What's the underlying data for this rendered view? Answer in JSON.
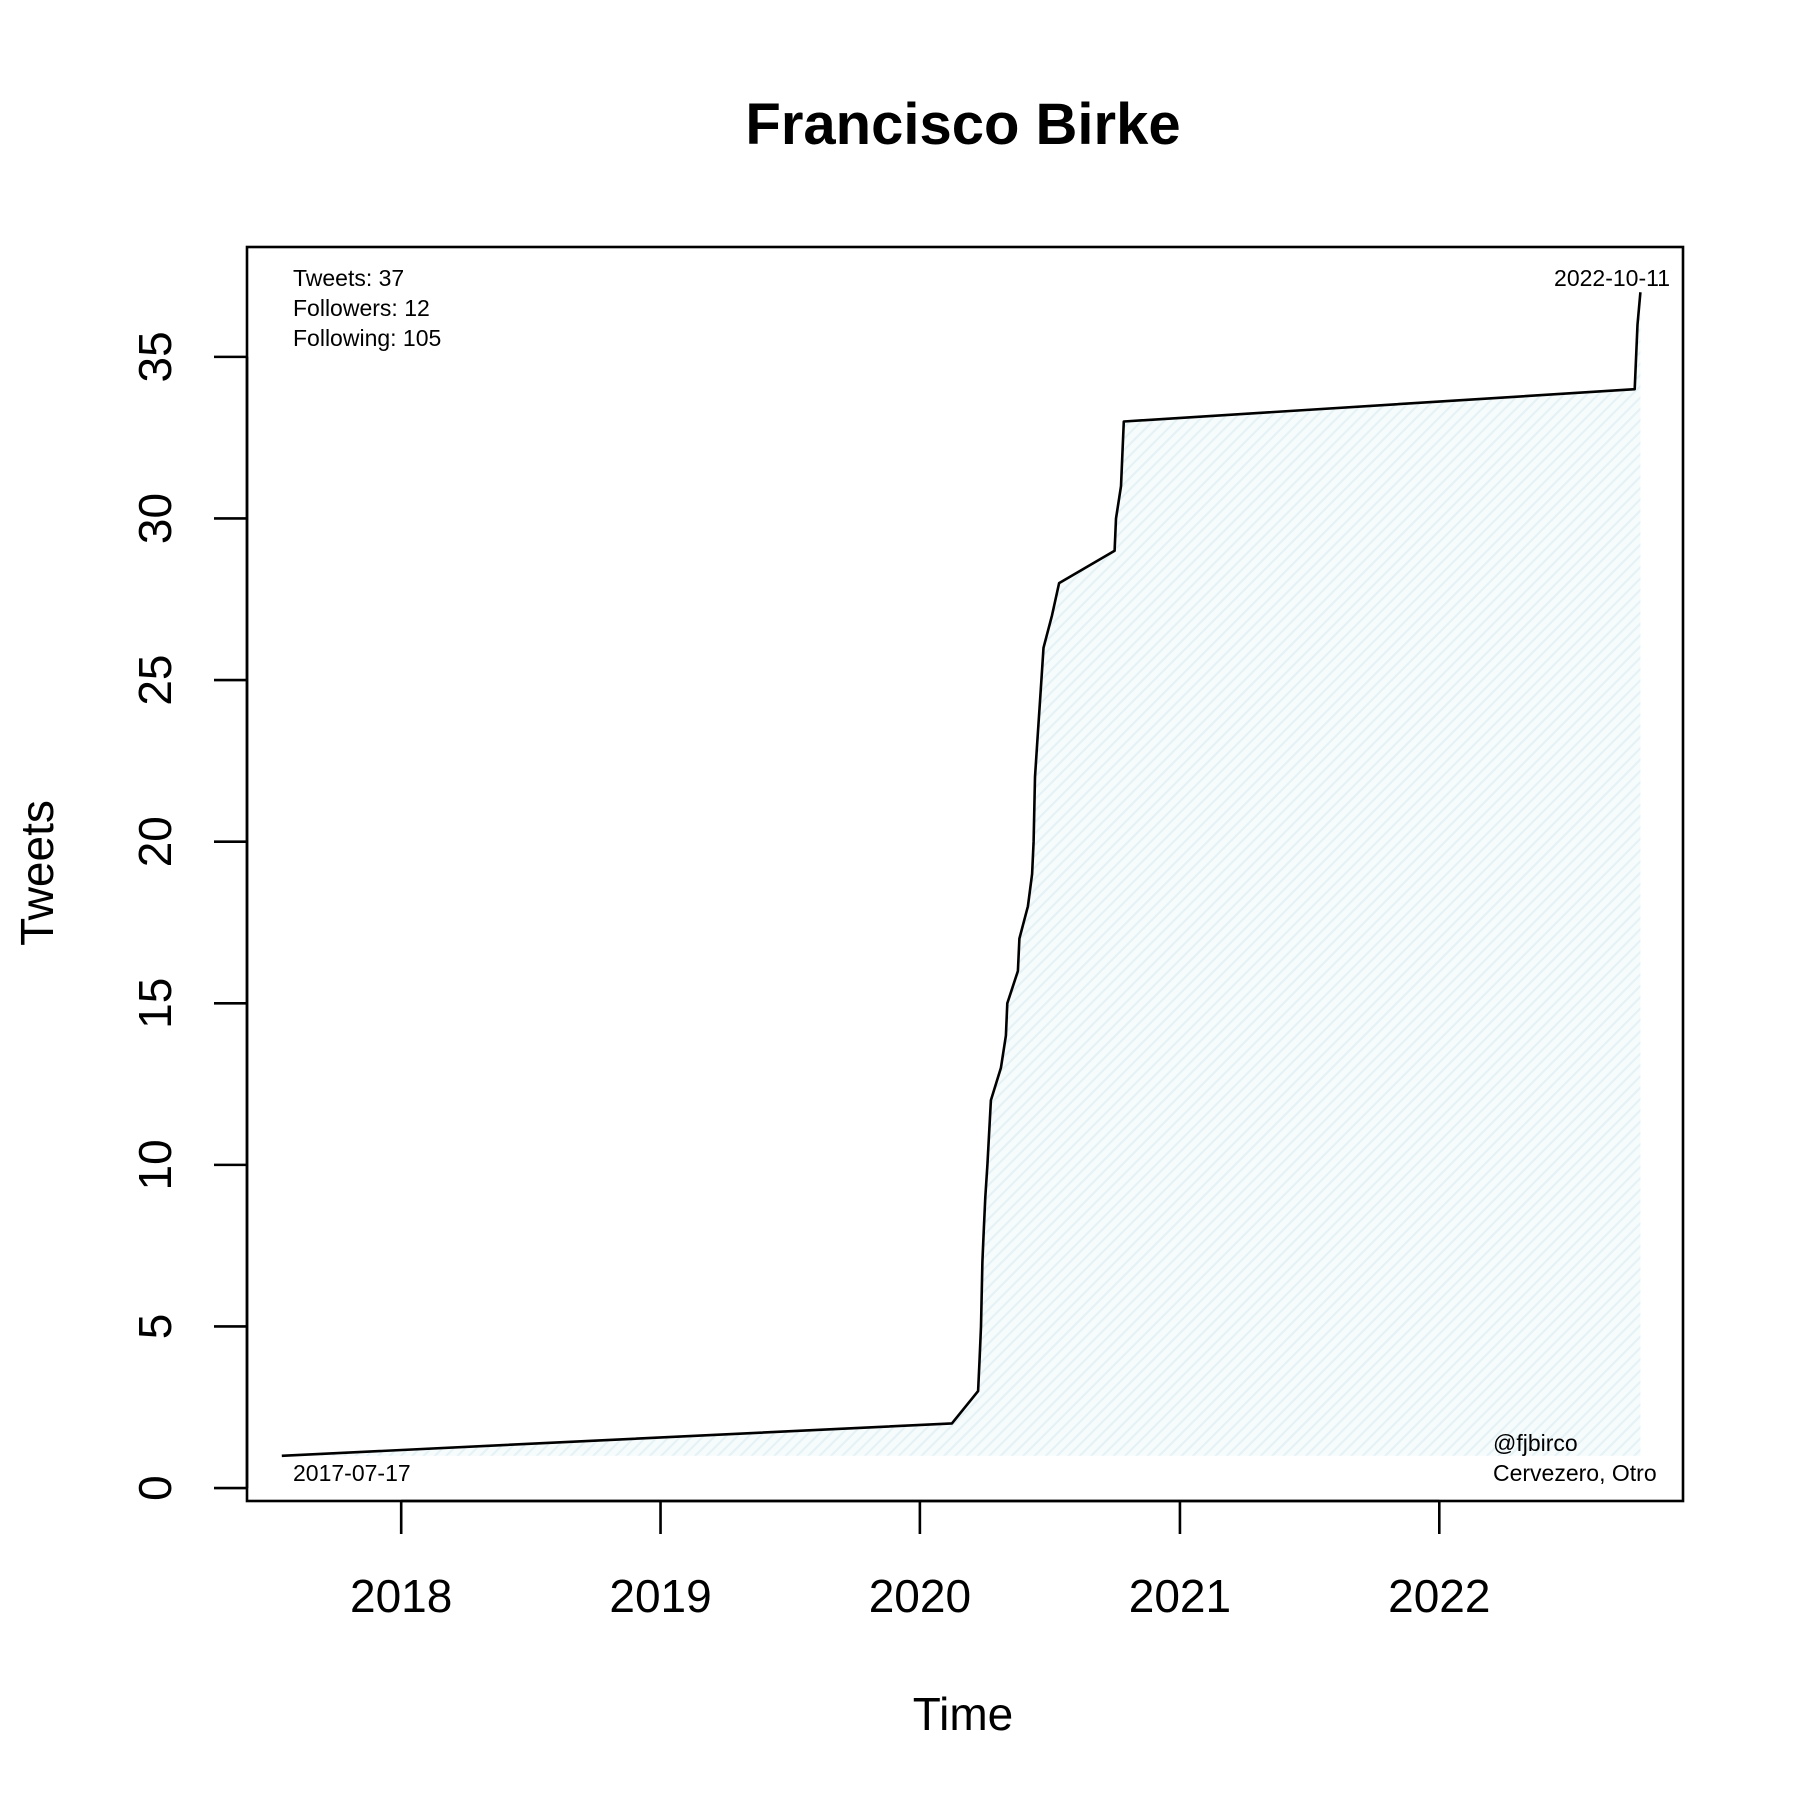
{
  "chart_data": {
    "type": "area",
    "title": "Francisco Birke",
    "xlabel": "Time",
    "ylabel": "Tweets",
    "x_ticks": [
      "2018",
      "2019",
      "2020",
      "2021",
      "2022"
    ],
    "y_ticks": [
      0,
      5,
      10,
      15,
      20,
      25,
      30,
      35
    ],
    "xlim": [
      "2017-05-29",
      "2022-12-10"
    ],
    "ylim": [
      -0.4,
      38.4
    ],
    "grid": false,
    "colors": {
      "line": "#000000",
      "fill": "#e4f1f5"
    },
    "series": [
      {
        "x": [
          "2017-07-17",
          "2020-02-15",
          "2020-03-23",
          "2020-03-25",
          "2020-03-27",
          "2020-03-29",
          "2020-03-31",
          "2020-04-02",
          "2020-04-05",
          "2020-04-10",
          "2020-04-24",
          "2020-05-01",
          "2020-05-03",
          "2020-05-18",
          "2020-05-20",
          "2020-06-01",
          "2020-06-07",
          "2020-06-09",
          "2020-06-10",
          "2020-06-11",
          "2020-06-14",
          "2020-06-20",
          "2020-06-23",
          "2020-07-05",
          "2020-07-15",
          "2020-10-01",
          "2020-10-03",
          "2020-10-10",
          "2020-10-12",
          "2020-10-14",
          "2022-10-03",
          "2022-10-07",
          "2022-10-11"
        ],
        "y": [
          1,
          2,
          3,
          4,
          5,
          7,
          8,
          9,
          10,
          12,
          13,
          14,
          15,
          16,
          17,
          18,
          19,
          20,
          21,
          22,
          23,
          25,
          26,
          27,
          28,
          29,
          30,
          31,
          32,
          33,
          34,
          36,
          37
        ]
      }
    ],
    "annotations": {
      "stats": [
        "Tweets: 37",
        "Followers: 12",
        "Following: 105"
      ],
      "start_date": "2017-07-17",
      "end_date": "2022-10-11",
      "handle": "@fjbirco",
      "client": "Cervezero, Otro"
    }
  }
}
